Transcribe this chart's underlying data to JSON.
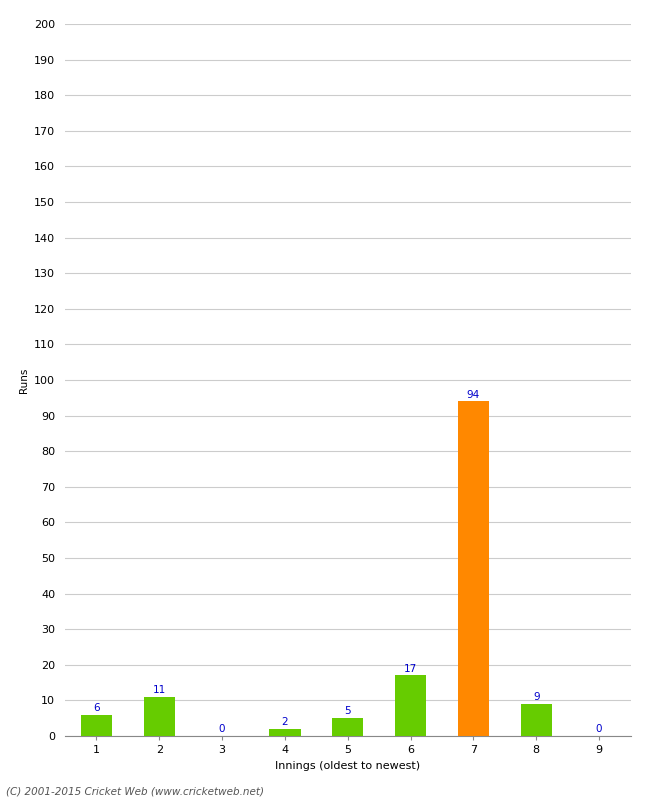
{
  "xlabel": "Innings (oldest to newest)",
  "ylabel": "Runs",
  "categories": [
    1,
    2,
    3,
    4,
    5,
    6,
    7,
    8,
    9
  ],
  "values": [
    6,
    11,
    0,
    2,
    5,
    17,
    94,
    9,
    0
  ],
  "bar_colors": [
    "#66cc00",
    "#66cc00",
    "#66cc00",
    "#66cc00",
    "#66cc00",
    "#66cc00",
    "#ff8800",
    "#66cc00",
    "#66cc00"
  ],
  "value_labels": [
    6,
    11,
    0,
    2,
    5,
    17,
    94,
    9,
    0
  ],
  "label_color": "#0000cc",
  "ylim": [
    0,
    200
  ],
  "yticks": [
    0,
    10,
    20,
    30,
    40,
    50,
    60,
    70,
    80,
    90,
    100,
    110,
    120,
    130,
    140,
    150,
    160,
    170,
    180,
    190,
    200
  ],
  "footer": "(C) 2001-2015 Cricket Web (www.cricketweb.net)",
  "background_color": "#ffffff",
  "grid_color": "#cccccc",
  "label_fontsize": 7.5,
  "axis_fontsize": 8,
  "ylabel_fontsize": 7.5,
  "bar_width": 0.5
}
